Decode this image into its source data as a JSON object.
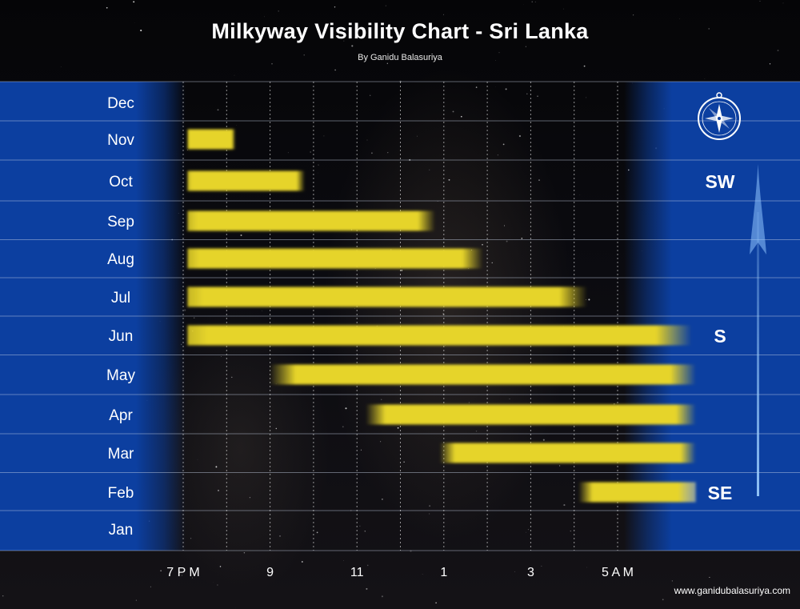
{
  "title": "Milkyway Visibility Chart - Sri Lanka",
  "subtitle": "By Ganidu Balasuriya",
  "credit": "www.ganidubalasuriya.com",
  "colors": {
    "band": "#0c3fa0",
    "bar": "#e6d42a",
    "grid": "#c8d2e6",
    "text": "#ffffff"
  },
  "chart_data": {
    "type": "bar",
    "orientation": "horizontal",
    "title": "Milkyway Visibility Chart - Sri Lanka",
    "subtitle": "By Ganidu Balasuriya",
    "x_tick_labels": [
      "7 P M",
      "9",
      "11",
      "1",
      "3",
      "5 A M"
    ],
    "x_unit": "hours after 7 PM",
    "x_ticks": [
      0,
      2,
      4,
      6,
      8,
      10
    ],
    "xlim": [
      0,
      11.8
    ],
    "grid": true,
    "categories": [
      "Dec",
      "Nov",
      "Oct",
      "Sep",
      "Aug",
      "Jul",
      "Jun",
      "May",
      "Apr",
      "Mar",
      "Feb",
      "Jan"
    ],
    "bars": [
      {
        "month": "Dec",
        "start": null,
        "end": null
      },
      {
        "month": "Nov",
        "start": 0.1,
        "end": 1.2
      },
      {
        "month": "Oct",
        "start": 0.1,
        "end": 2.8
      },
      {
        "month": "Sep",
        "start": 0.1,
        "end": 5.8
      },
      {
        "month": "Aug",
        "start": 0.1,
        "end": 6.9
      },
      {
        "month": "Jul",
        "start": 0.1,
        "end": 9.3
      },
      {
        "month": "Jun",
        "start": 0.1,
        "end": 11.7
      },
      {
        "month": "May",
        "start": 2.0,
        "end": 11.8
      },
      {
        "month": "Apr",
        "start": 4.2,
        "end": 11.8
      },
      {
        "month": "Mar",
        "start": 5.9,
        "end": 11.8
      },
      {
        "month": "Feb",
        "start": 9.1,
        "end": 11.8
      },
      {
        "month": "Jan",
        "start": null,
        "end": null
      }
    ],
    "directions": [
      {
        "label": "SW",
        "month": "Oct"
      },
      {
        "label": "S",
        "month": "Jun"
      },
      {
        "label": "SE",
        "month": "Feb"
      }
    ]
  }
}
